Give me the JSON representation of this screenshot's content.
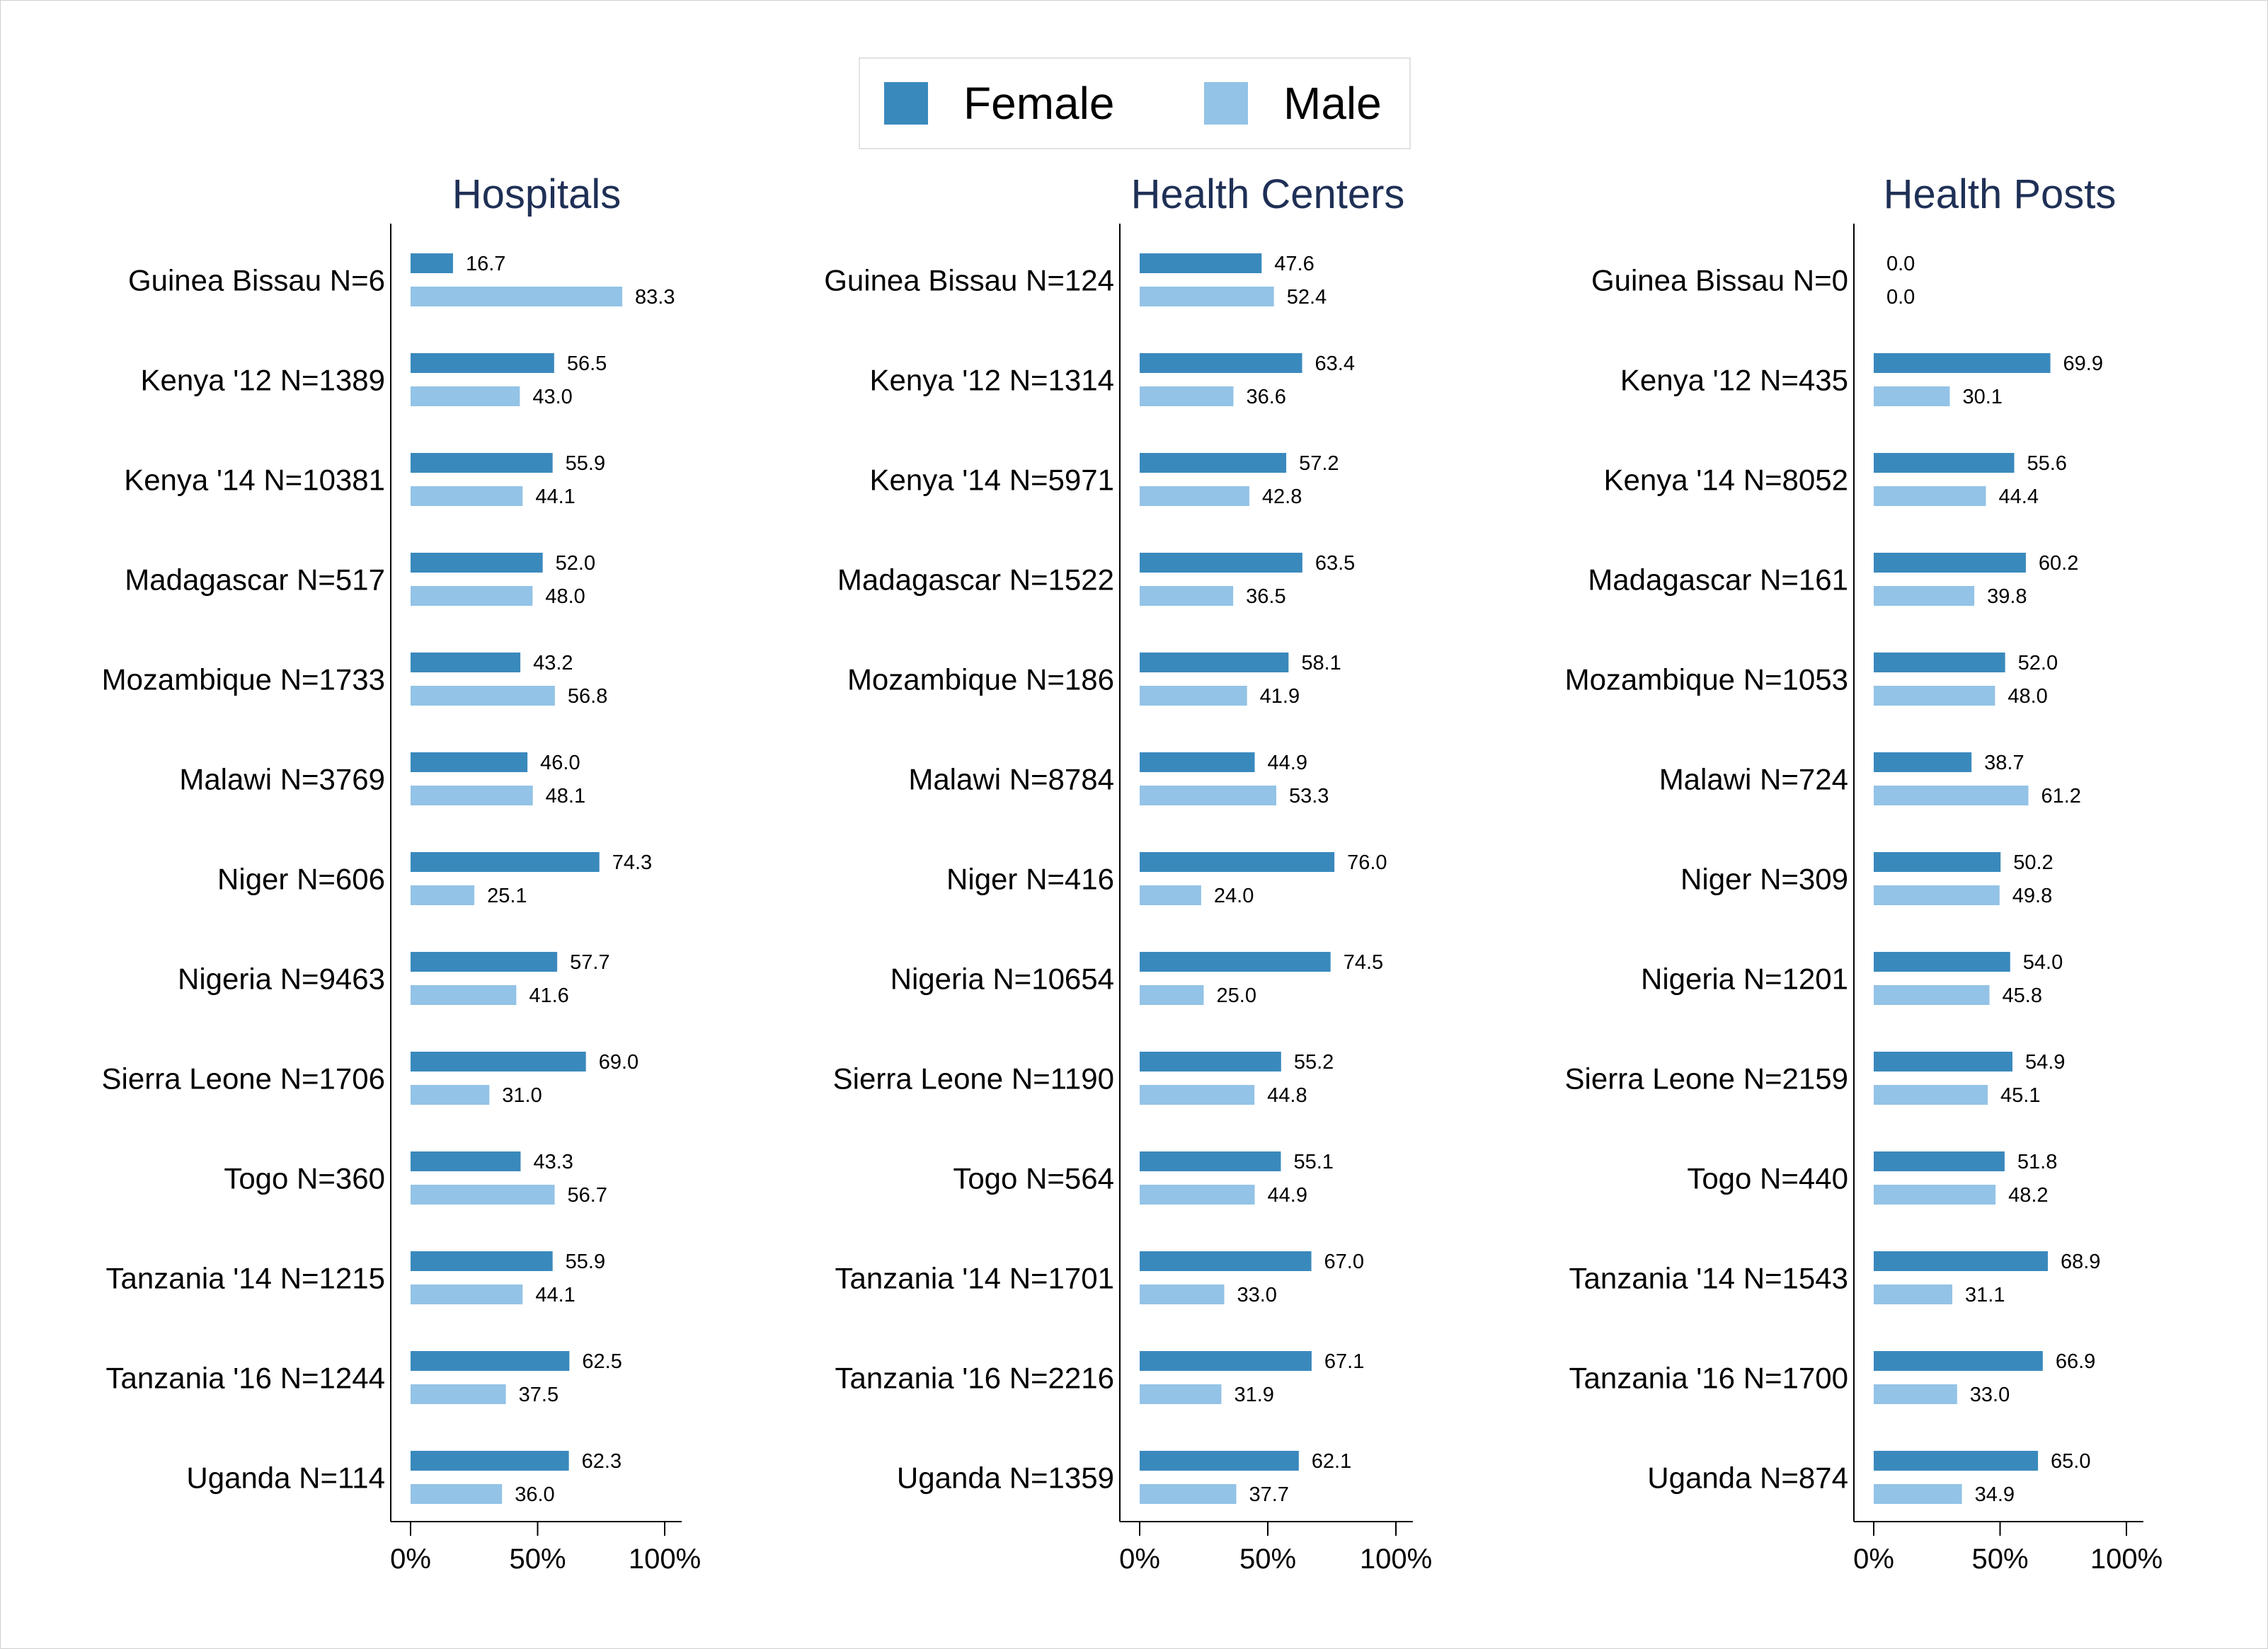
{
  "legend": {
    "female_label": "Female",
    "male_label": "Male"
  },
  "colors": {
    "female": "#3a89bd",
    "male": "#93c3e6",
    "title": "#1f3056",
    "axis": "#000000"
  },
  "chart_data": [
    {
      "type": "bar",
      "orientation": "horizontal",
      "title": "Hospitals",
      "xlim": [
        0,
        100
      ],
      "xticks": [
        "0%",
        "50%",
        "100%"
      ],
      "categories": [
        "Guinea Bissau N=6",
        "Kenya '12 N=1389",
        "Kenya '14 N=10381",
        "Madagascar N=517",
        "Mozambique N=1733",
        "Malawi N=3769",
        "Niger N=606",
        "Nigeria N=9463",
        "Sierra Leone N=1706",
        "Togo N=360",
        "Tanzania '14 N=1215",
        "Tanzania '16 N=1244",
        "Uganda N=114"
      ],
      "series": [
        {
          "name": "Female",
          "values": [
            16.7,
            56.5,
            55.9,
            52.0,
            43.2,
            46.0,
            74.3,
            57.7,
            69.0,
            43.3,
            55.9,
            62.5,
            62.3
          ]
        },
        {
          "name": "Male",
          "values": [
            83.3,
            43.0,
            44.1,
            48.0,
            56.8,
            48.1,
            25.1,
            41.6,
            31.0,
            56.7,
            44.1,
            37.5,
            36.0
          ]
        }
      ]
    },
    {
      "type": "bar",
      "orientation": "horizontal",
      "title": "Health Centers",
      "xlim": [
        0,
        100
      ],
      "xticks": [
        "0%",
        "50%",
        "100%"
      ],
      "categories": [
        "Guinea Bissau N=124",
        "Kenya '12 N=1314",
        "Kenya '14 N=5971",
        "Madagascar N=1522",
        "Mozambique N=186",
        "Malawi N=8784",
        "Niger N=416",
        "Nigeria N=10654",
        "Sierra Leone N=1190",
        "Togo N=564",
        "Tanzania '14 N=1701",
        "Tanzania '16 N=2216",
        "Uganda N=1359"
      ],
      "series": [
        {
          "name": "Female",
          "values": [
            47.6,
            63.4,
            57.2,
            63.5,
            58.1,
            44.9,
            76.0,
            74.5,
            55.2,
            55.1,
            67.0,
            67.1,
            62.1
          ]
        },
        {
          "name": "Male",
          "values": [
            52.4,
            36.6,
            42.8,
            36.5,
            41.9,
            53.3,
            24.0,
            25.0,
            44.8,
            44.9,
            33.0,
            31.9,
            37.7
          ]
        }
      ]
    },
    {
      "type": "bar",
      "orientation": "horizontal",
      "title": "Health Posts",
      "xlim": [
        0,
        100
      ],
      "xticks": [
        "0%",
        "50%",
        "100%"
      ],
      "categories": [
        "Guinea Bissau N=0",
        "Kenya '12 N=435",
        "Kenya '14 N=8052",
        "Madagascar N=161",
        "Mozambique N=1053",
        "Malawi N=724",
        "Niger N=309",
        "Nigeria N=1201",
        "Sierra Leone N=2159",
        "Togo N=440",
        "Tanzania '14 N=1543",
        "Tanzania '16 N=1700",
        "Uganda N=874"
      ],
      "series": [
        {
          "name": "Female",
          "values": [
            0.0,
            69.9,
            55.6,
            60.2,
            52.0,
            38.7,
            50.2,
            54.0,
            54.9,
            51.8,
            68.9,
            66.9,
            65.0
          ]
        },
        {
          "name": "Male",
          "values": [
            0.0,
            30.1,
            44.4,
            39.8,
            48.0,
            61.2,
            49.8,
            45.8,
            45.1,
            48.2,
            31.1,
            33.0,
            34.9
          ]
        }
      ]
    }
  ]
}
